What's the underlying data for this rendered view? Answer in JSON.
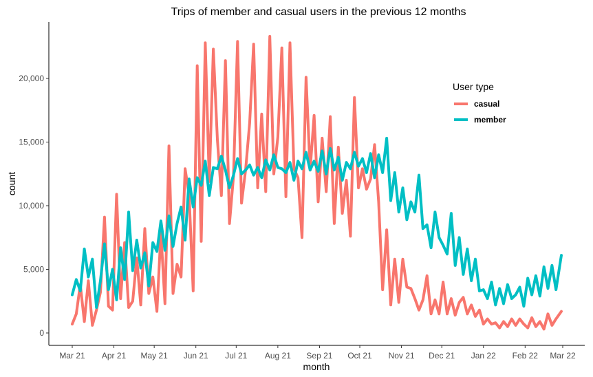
{
  "chart_data": {
    "type": "line",
    "title": "Trips of member and casual users in the previous 12 months",
    "xlabel": "month",
    "ylabel": "count",
    "x_ticks": [
      "Mar 21",
      "Apr 21",
      "May 21",
      "Jun 21",
      "Jul 21",
      "Aug 21",
      "Sep 21",
      "Oct 21",
      "Nov 21",
      "Dec 21",
      "Jan 22",
      "Feb 22",
      "Mar 22"
    ],
    "y_ticks": [
      0,
      5000,
      10000,
      15000,
      20000
    ],
    "y_tick_labels": [
      "0",
      "5,000",
      "10,000",
      "15,000",
      "20,000"
    ],
    "ylim": [
      -700,
      24600
    ],
    "grid": false,
    "legend": {
      "title": "User type",
      "position": "right-inside"
    },
    "series": [
      {
        "name": "casual",
        "color": "#F8766D",
        "x": [
          "2021-03-01",
          "2021-03-04",
          "2021-03-07",
          "2021-03-10",
          "2021-03-13",
          "2021-03-16",
          "2021-03-19",
          "2021-03-22",
          "2021-03-25",
          "2021-03-28",
          "2021-03-31",
          "2021-04-03",
          "2021-04-06",
          "2021-04-09",
          "2021-04-12",
          "2021-04-15",
          "2021-04-18",
          "2021-04-21",
          "2021-04-24",
          "2021-04-27",
          "2021-04-30",
          "2021-05-03",
          "2021-05-06",
          "2021-05-09",
          "2021-05-12",
          "2021-05-15",
          "2021-05-18",
          "2021-05-21",
          "2021-05-24",
          "2021-05-27",
          "2021-05-30",
          "2021-06-02",
          "2021-06-05",
          "2021-06-08",
          "2021-06-11",
          "2021-06-14",
          "2021-06-17",
          "2021-06-20",
          "2021-06-23",
          "2021-06-26",
          "2021-06-29",
          "2021-07-02",
          "2021-07-05",
          "2021-07-08",
          "2021-07-11",
          "2021-07-14",
          "2021-07-17",
          "2021-07-20",
          "2021-07-23",
          "2021-07-26",
          "2021-07-29",
          "2021-08-01",
          "2021-08-04",
          "2021-08-07",
          "2021-08-10",
          "2021-08-13",
          "2021-08-16",
          "2021-08-19",
          "2021-08-22",
          "2021-08-25",
          "2021-08-28",
          "2021-08-31",
          "2021-09-03",
          "2021-09-06",
          "2021-09-09",
          "2021-09-12",
          "2021-09-15",
          "2021-09-18",
          "2021-09-21",
          "2021-09-24",
          "2021-09-27",
          "2021-09-30",
          "2021-10-03",
          "2021-10-06",
          "2021-10-09",
          "2021-10-12",
          "2021-10-15",
          "2021-10-18",
          "2021-10-21",
          "2021-10-24",
          "2021-10-27",
          "2021-10-30",
          "2021-11-02",
          "2021-11-05",
          "2021-11-08",
          "2021-11-11",
          "2021-11-14",
          "2021-11-17",
          "2021-11-20",
          "2021-11-23",
          "2021-11-26",
          "2021-11-29",
          "2021-12-02",
          "2021-12-05",
          "2021-12-08",
          "2021-12-11",
          "2021-12-14",
          "2021-12-17",
          "2021-12-20",
          "2021-12-23",
          "2021-12-26",
          "2021-12-29",
          "2022-01-01",
          "2022-01-04",
          "2022-01-07",
          "2022-01-10",
          "2022-01-13",
          "2022-01-16",
          "2022-01-19",
          "2022-01-22",
          "2022-01-25",
          "2022-01-28",
          "2022-01-31",
          "2022-02-03",
          "2022-02-06",
          "2022-02-09",
          "2022-02-12",
          "2022-02-15",
          "2022-02-18",
          "2022-02-21",
          "2022-02-24",
          "2022-02-28"
        ],
        "values": [
          700,
          1500,
          3800,
          900,
          4100,
          600,
          1800,
          3200,
          9100,
          2100,
          1800,
          10900,
          2700,
          7100,
          2000,
          2500,
          5900,
          2200,
          8200,
          3100,
          4400,
          1700,
          7900,
          2300,
          14700,
          3100,
          5400,
          4400,
          12900,
          10800,
          3300,
          21000,
          7200,
          22800,
          11900,
          22300,
          15200,
          10800,
          21400,
          8600,
          12300,
          22900,
          10200,
          12800,
          16500,
          22700,
          11400,
          17200,
          11100,
          23300,
          12500,
          15400,
          22400,
          10700,
          22800,
          12900,
          12200,
          7500,
          20100,
          12800,
          17100,
          10300,
          15300,
          11100,
          17000,
          8600,
          14600,
          9400,
          12000,
          7600,
          18500,
          11400,
          12900,
          11300,
          12100,
          14800,
          10300,
          3400,
          8100,
          2200,
          5800,
          2400,
          5800,
          3600,
          3500,
          2700,
          1800,
          2600,
          4500,
          1500,
          2600,
          1500,
          4000,
          1500,
          2700,
          1400,
          2400,
          2800,
          1500,
          2200,
          1300,
          1800,
          700,
          1100,
          700,
          800,
          400,
          900,
          500,
          1100,
          600,
          1100,
          700,
          400,
          1200,
          500,
          900,
          300,
          1500,
          600,
          1100,
          1700
        ]
      },
      {
        "name": "member",
        "color": "#00BFC4",
        "x": [
          "2021-03-01",
          "2021-03-04",
          "2021-03-07",
          "2021-03-10",
          "2021-03-13",
          "2021-03-16",
          "2021-03-19",
          "2021-03-22",
          "2021-03-25",
          "2021-03-28",
          "2021-03-31",
          "2021-04-03",
          "2021-04-06",
          "2021-04-09",
          "2021-04-12",
          "2021-04-15",
          "2021-04-18",
          "2021-04-21",
          "2021-04-24",
          "2021-04-27",
          "2021-04-30",
          "2021-05-03",
          "2021-05-06",
          "2021-05-09",
          "2021-05-12",
          "2021-05-15",
          "2021-05-18",
          "2021-05-21",
          "2021-05-24",
          "2021-05-27",
          "2021-05-30",
          "2021-06-02",
          "2021-06-05",
          "2021-06-08",
          "2021-06-11",
          "2021-06-14",
          "2021-06-17",
          "2021-06-20",
          "2021-06-23",
          "2021-06-26",
          "2021-06-29",
          "2021-07-02",
          "2021-07-05",
          "2021-07-08",
          "2021-07-11",
          "2021-07-14",
          "2021-07-17",
          "2021-07-20",
          "2021-07-23",
          "2021-07-26",
          "2021-07-29",
          "2021-08-01",
          "2021-08-04",
          "2021-08-07",
          "2021-08-10",
          "2021-08-13",
          "2021-08-16",
          "2021-08-19",
          "2021-08-22",
          "2021-08-25",
          "2021-08-28",
          "2021-08-31",
          "2021-09-03",
          "2021-09-06",
          "2021-09-09",
          "2021-09-12",
          "2021-09-15",
          "2021-09-18",
          "2021-09-21",
          "2021-09-24",
          "2021-09-27",
          "2021-09-30",
          "2021-10-03",
          "2021-10-06",
          "2021-10-09",
          "2021-10-12",
          "2021-10-15",
          "2021-10-18",
          "2021-10-21",
          "2021-10-24",
          "2021-10-27",
          "2021-10-30",
          "2021-11-02",
          "2021-11-05",
          "2021-11-08",
          "2021-11-11",
          "2021-11-14",
          "2021-11-17",
          "2021-11-20",
          "2021-11-23",
          "2021-11-26",
          "2021-11-29",
          "2021-12-02",
          "2021-12-05",
          "2021-12-08",
          "2021-12-11",
          "2021-12-14",
          "2021-12-17",
          "2021-12-20",
          "2021-12-23",
          "2021-12-26",
          "2021-12-29",
          "2022-01-01",
          "2022-01-04",
          "2022-01-07",
          "2022-01-10",
          "2022-01-13",
          "2022-01-16",
          "2022-01-19",
          "2022-01-22",
          "2022-01-25",
          "2022-01-28",
          "2022-01-31",
          "2022-02-03",
          "2022-02-06",
          "2022-02-09",
          "2022-02-12",
          "2022-02-15",
          "2022-02-18",
          "2022-02-21",
          "2022-02-24",
          "2022-02-28"
        ],
        "values": [
          3000,
          4200,
          3300,
          6600,
          4400,
          5800,
          2000,
          4100,
          7000,
          3400,
          5000,
          2600,
          6700,
          4200,
          9500,
          4900,
          7300,
          5100,
          6300,
          3700,
          7100,
          6400,
          8800,
          6500,
          9200,
          6800,
          8600,
          9900,
          7300,
          12100,
          9900,
          12200,
          11600,
          13500,
          10800,
          13000,
          12900,
          13900,
          12800,
          11400,
          12400,
          13700,
          12500,
          12800,
          13200,
          12400,
          13000,
          12200,
          13600,
          12800,
          14000,
          13000,
          12900,
          12600,
          13400,
          12000,
          13500,
          12900,
          14200,
          12800,
          13500,
          12700,
          14300,
          12500,
          14500,
          12800,
          13800,
          12000,
          13400,
          12900,
          14200,
          13100,
          13700,
          12600,
          14100,
          12200,
          14000,
          12600,
          15300,
          10400,
          12600,
          9500,
          11400,
          8900,
          10300,
          9500,
          12400,
          8200,
          8500,
          6700,
          9500,
          7500,
          6900,
          6200,
          9400,
          5300,
          7500,
          4600,
          6600,
          4100,
          5800,
          3300,
          3400,
          2700,
          4000,
          2200,
          3500,
          2300,
          3800,
          2700,
          3000,
          3600,
          2100,
          4300,
          3000,
          4500,
          2900,
          5200,
          3500,
          5300,
          3400,
          6100
        ]
      }
    ]
  }
}
